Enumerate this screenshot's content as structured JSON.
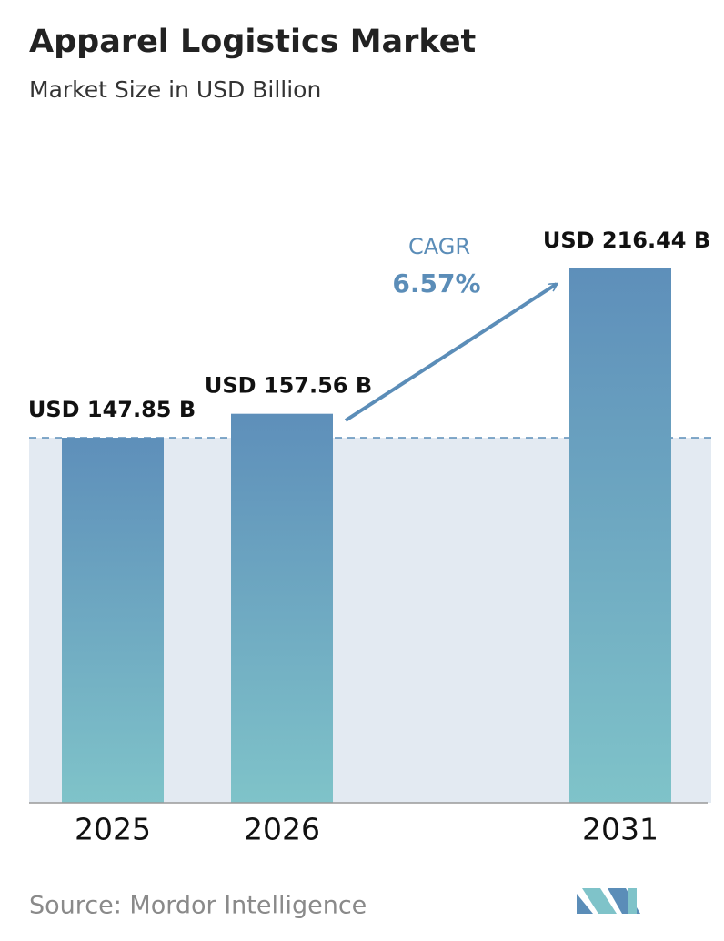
{
  "chart_data": {
    "type": "bar",
    "title": "Apparel Logistics Market",
    "subtitle": "Market Size in USD Billion",
    "categories": [
      "2025",
      "2026",
      "2031"
    ],
    "values": [
      147.85,
      157.56,
      216.44
    ],
    "value_labels": [
      "USD 147.85 B",
      "USD 157.56 B",
      "USD 216.44 B"
    ],
    "annotation": {
      "label": "CAGR",
      "value": "6.57%"
    },
    "source": "Source: Mordor Intelligence",
    "color": "#5b8db8"
  }
}
